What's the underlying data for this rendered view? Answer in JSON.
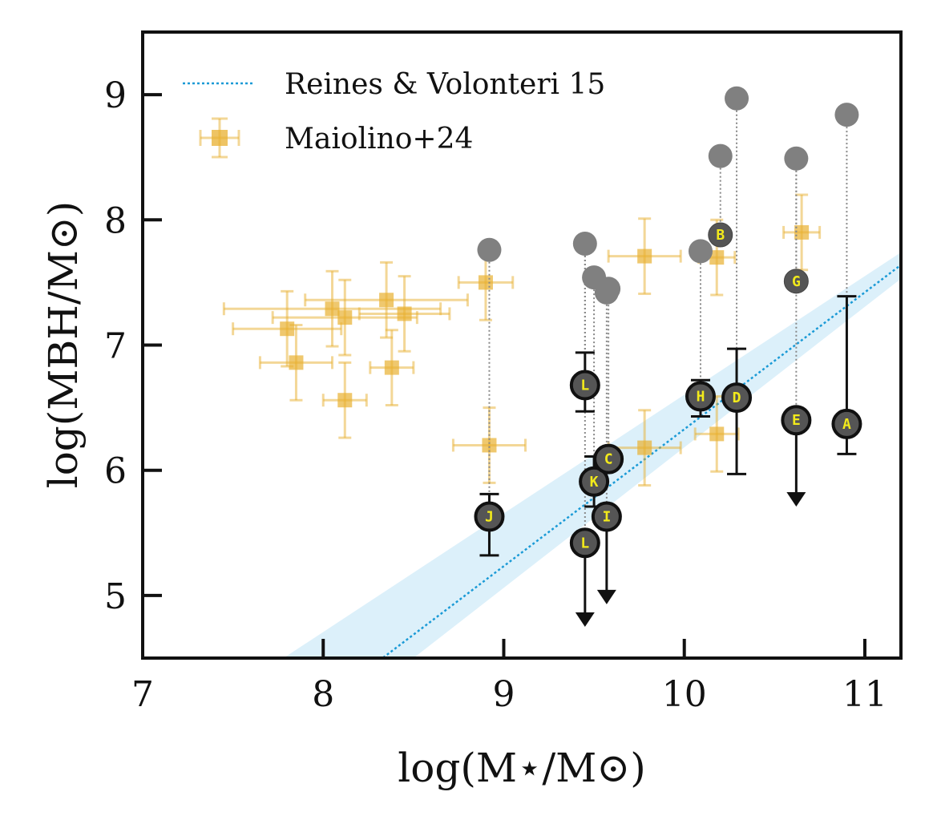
{
  "chart_data": {
    "type": "scatter",
    "title": "",
    "xlabel": "log(M⋆/M⊙)",
    "ylabel": "log(MBH/M⊙)",
    "xlim": [
      7,
      11.2
    ],
    "ylim": [
      4.5,
      9.5
    ],
    "xticks": [
      "7",
      "8",
      "9",
      "10",
      "11"
    ],
    "yticks": [
      "5",
      "6",
      "7",
      "8",
      "9"
    ],
    "xtick_values": [
      7,
      8,
      9,
      10,
      11
    ],
    "ytick_values": [
      5,
      6,
      7,
      8,
      9
    ],
    "legend": {
      "placement": "top-left",
      "entries": [
        "Reines & Volonteri 15",
        "Maiolino+24"
      ]
    },
    "relation": {
      "name": "Reines & Volonteri 15",
      "color": "#1a9ad6",
      "band_color": "#bfe3f5",
      "line": [
        [
          7.78,
          3.9
        ],
        [
          11.2,
          7.64
        ]
      ],
      "band_upper": [
        [
          7.78,
          4.5
        ],
        [
          11.2,
          7.74
        ]
      ],
      "band_lower": [
        [
          8.5,
          4.5
        ],
        [
          11.2,
          7.53
        ]
      ]
    },
    "maiolino": {
      "name": "Maiolino+24",
      "color": "#e8b030",
      "points": [
        {
          "x": 7.8,
          "y": 7.13,
          "xerr": 0.3,
          "yerr": 0.3
        },
        {
          "x": 7.85,
          "y": 6.86,
          "xerr": 0.2,
          "yerr": 0.3
        },
        {
          "x": 8.05,
          "y": 7.29,
          "xerr": 0.6,
          "yerr": 0.3
        },
        {
          "x": 8.12,
          "y": 7.22,
          "xerr": 0.4,
          "yerr": 0.3
        },
        {
          "x": 8.12,
          "y": 6.56,
          "xerr": 0.12,
          "yerr": 0.3
        },
        {
          "x": 8.35,
          "y": 7.36,
          "xerr": 0.45,
          "yerr": 0.3
        },
        {
          "x": 8.45,
          "y": 7.25,
          "xerr": 0.25,
          "yerr": 0.3
        },
        {
          "x": 8.38,
          "y": 6.82,
          "xerr": 0.12,
          "yerr": 0.3
        },
        {
          "x": 8.9,
          "y": 7.5,
          "xerr": 0.15,
          "yerr": 0.3
        },
        {
          "x": 8.92,
          "y": 6.2,
          "xerr": 0.2,
          "yerr": 0.3
        },
        {
          "x": 9.78,
          "y": 7.71,
          "xerr": 0.2,
          "yerr": 0.3
        },
        {
          "x": 9.78,
          "y": 6.18,
          "xerr": 0.2,
          "yerr": 0.3
        },
        {
          "x": 10.18,
          "y": 7.7,
          "xerr": 0.1,
          "yerr": 0.3
        },
        {
          "x": 10.18,
          "y": 6.29,
          "xerr": 0.12,
          "yerr": 0.3
        },
        {
          "x": 10.65,
          "y": 7.9,
          "xerr": 0.1,
          "yerr": 0.3
        }
      ]
    },
    "sample": [
      {
        "label": "J",
        "x": 8.92,
        "y": 5.63,
        "gray_y": 7.76,
        "err_lo": 0.31,
        "err_hi": 0.18
      },
      {
        "label": "L",
        "x": 9.45,
        "y": 6.68,
        "gray_y": 7.81,
        "err_lo": 0.21,
        "err_hi": 0.26
      },
      {
        "label": "L",
        "x": 9.45,
        "y": 5.42,
        "gray_y": 7.81,
        "upper_limit": true,
        "arrow_to": 4.75
      },
      {
        "label": "K",
        "x": 9.5,
        "y": 5.91,
        "gray_y": 7.54,
        "err_lo": 0.2,
        "err_hi": 0.2
      },
      {
        "label": "C",
        "x": 9.58,
        "y": 6.09,
        "gray_y": 7.45
      },
      {
        "label": "I",
        "x": 9.57,
        "y": 5.63,
        "gray_y": 7.42,
        "upper_limit": true,
        "arrow_to": 4.93
      },
      {
        "label": "H",
        "x": 10.09,
        "y": 6.59,
        "gray_y": 7.75,
        "err_lo": 0.16,
        "err_hi": 0.13
      },
      {
        "label": "D",
        "x": 10.29,
        "y": 6.58,
        "gray_y": 8.97,
        "err_lo": 0.61,
        "err_hi": 0.39
      },
      {
        "label": "B",
        "x": 10.2,
        "y": 7.88,
        "gray_y": 8.51,
        "small": true
      },
      {
        "label": "G",
        "x": 10.62,
        "y": 7.51,
        "gray_y": 8.49,
        "small": true
      },
      {
        "label": "E",
        "x": 10.62,
        "y": 6.4,
        "gray_y": 8.49,
        "upper_limit": true,
        "arrow_to": 5.71
      },
      {
        "label": "A",
        "x": 10.9,
        "y": 6.37,
        "gray_y": 8.84,
        "err_lo": 0.24,
        "err_hi": 1.02
      }
    ]
  }
}
